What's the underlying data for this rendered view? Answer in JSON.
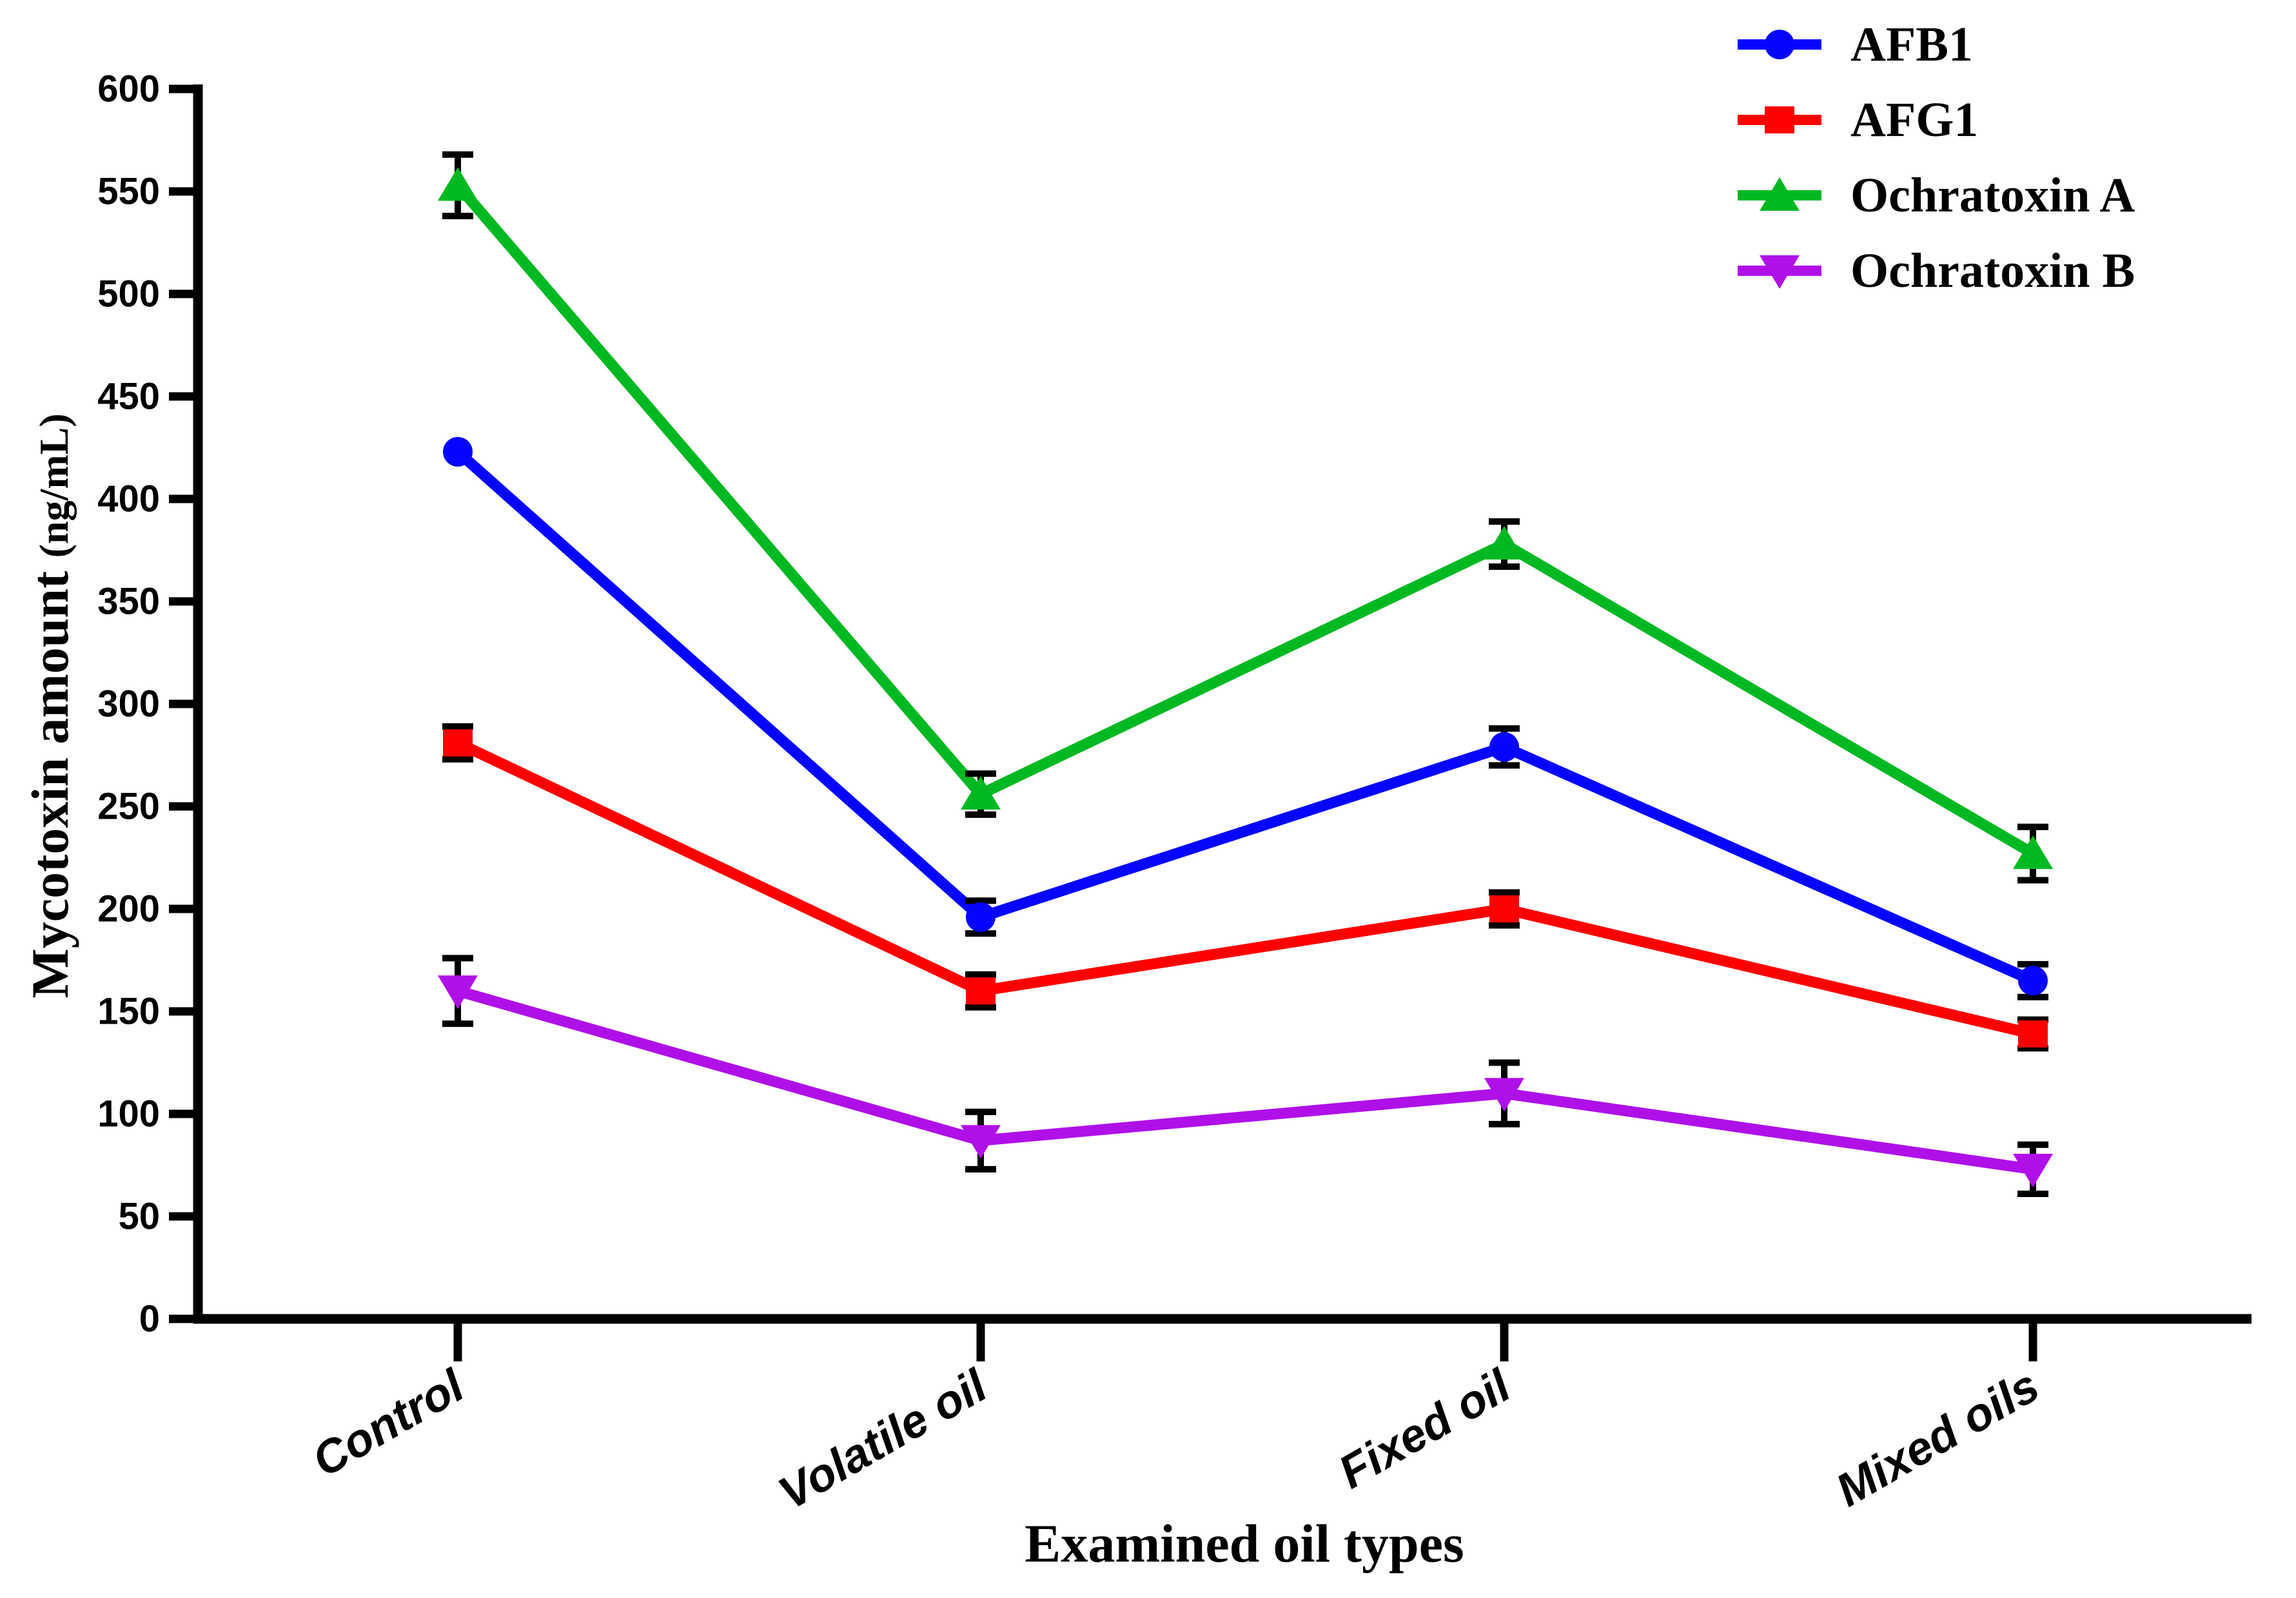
{
  "figure": {
    "background": "#ffffff",
    "axis_color": "#000000"
  },
  "chart_data": {
    "type": "line",
    "title": "",
    "xlabel": "Examined oil types",
    "ylabel": "Mycotoxin amount (ng/mL)",
    "ylabel_main": "Mycotoxin amount ",
    "ylabel_unit": "(ng/mL)",
    "categories": [
      "Control",
      "Volatile oil",
      "Fixed oil",
      "Mixed oils"
    ],
    "ylim": [
      0,
      600
    ],
    "ytick_step": 50,
    "yticks": [
      0,
      50,
      100,
      150,
      200,
      250,
      300,
      350,
      400,
      450,
      500,
      550,
      600
    ],
    "grid": false,
    "legend_position": "top-right",
    "error_bars": true,
    "series": [
      {
        "name": "AFB1",
        "color": "#0505FF",
        "marker": "circle",
        "values": [
          423,
          196,
          279,
          165
        ],
        "errors": [
          0,
          8,
          9,
          8
        ]
      },
      {
        "name": "AFG1",
        "color": "#FF0000",
        "marker": "square",
        "values": [
          281,
          160,
          200,
          139
        ],
        "errors": [
          8,
          8,
          8,
          7
        ]
      },
      {
        "name": "Ochratoxin A",
        "color": "#00B922",
        "marker": "triangle-up",
        "values": [
          553,
          256,
          378,
          227
        ],
        "errors": [
          15,
          10,
          11,
          13
        ]
      },
      {
        "name": "Ochratoxin B",
        "color": "#B010E8",
        "marker": "triangle-down",
        "values": [
          160,
          87,
          110,
          73
        ],
        "errors": [
          16,
          14,
          15,
          12
        ]
      }
    ]
  }
}
